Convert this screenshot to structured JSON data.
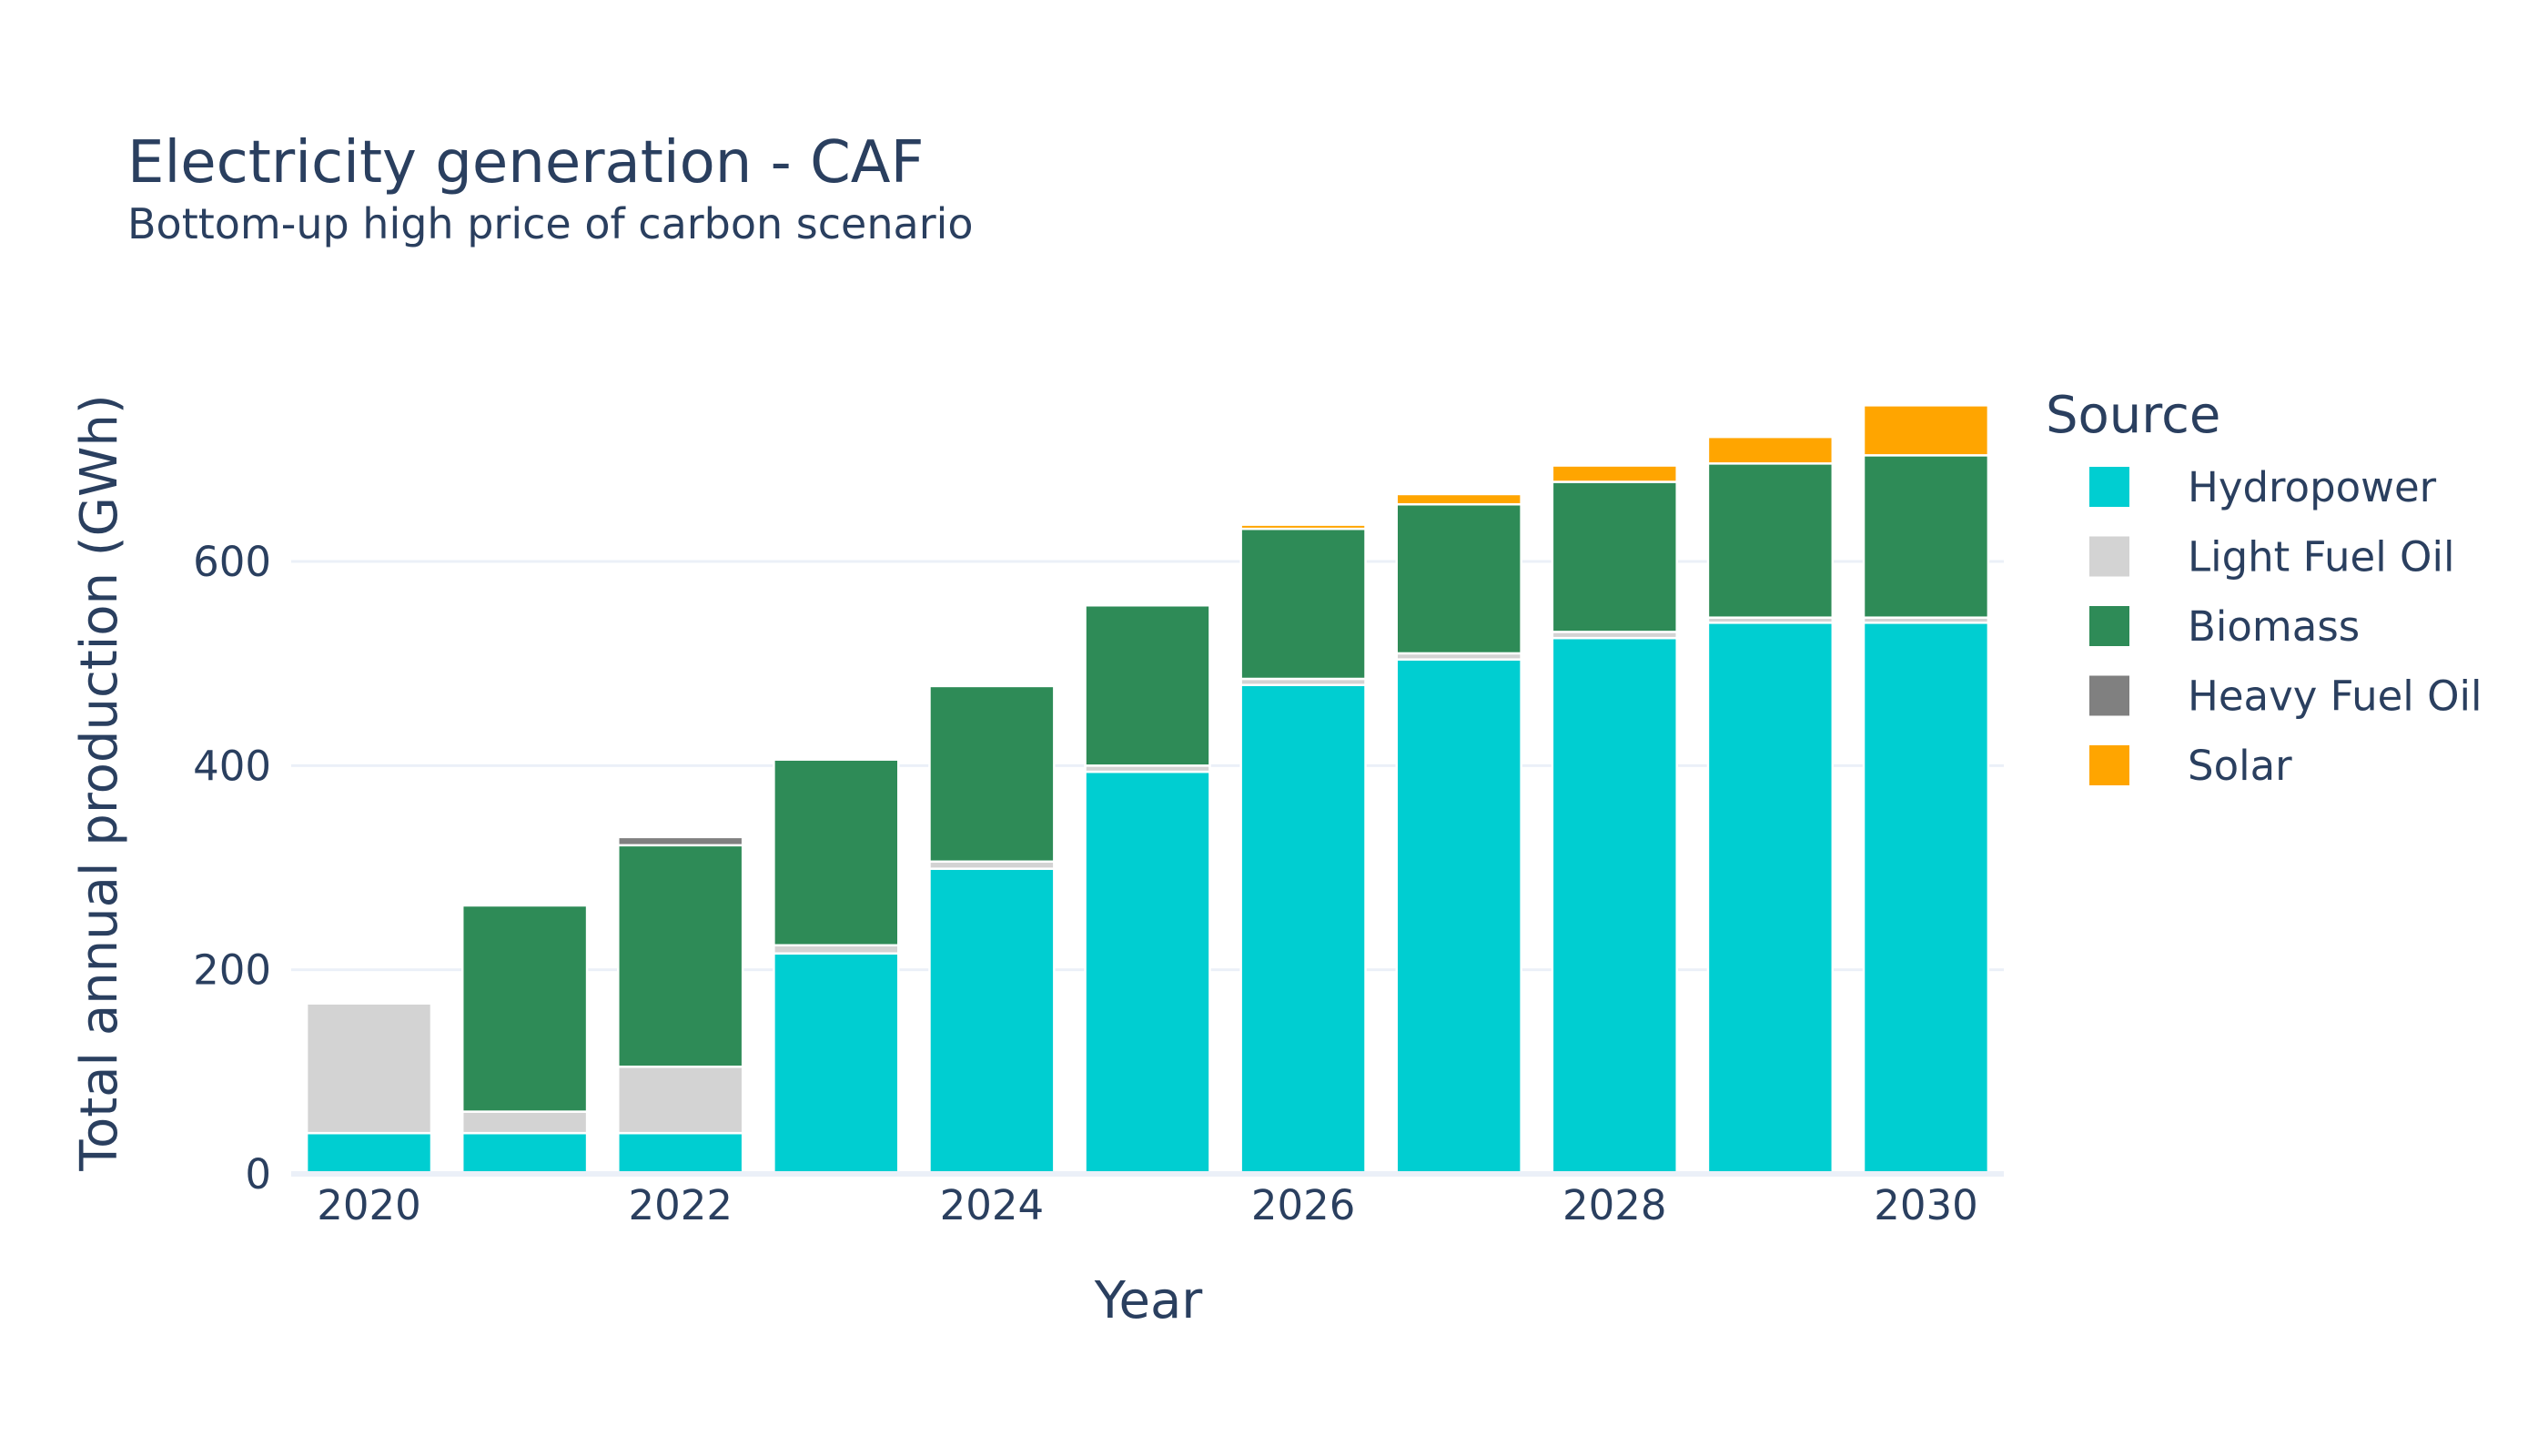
{
  "chart_data": {
    "type": "bar",
    "stacked": true,
    "title": "Electricity generation - CAF",
    "subtitle": "Bottom-up high price of carbon scenario",
    "xlabel": "Year",
    "ylabel": "Total annual production (GWh)",
    "x": [
      2020,
      2021,
      2022,
      2023,
      2024,
      2025,
      2026,
      2027,
      2028,
      2029,
      2030
    ],
    "x_ticks": [
      "2020",
      "2022",
      "2024",
      "2026",
      "2028",
      "2030"
    ],
    "y_ticks": [
      "0",
      "200",
      "400",
      "600"
    ],
    "ylim": [
      0,
      760
    ],
    "grid": true,
    "legend": {
      "title": "Source",
      "position": "right"
    },
    "series": [
      {
        "name": "Hydropower",
        "color": "#00CED1",
        "values": [
          40,
          40,
          40,
          216,
          299,
          394,
          479,
          504,
          525,
          540,
          540
        ]
      },
      {
        "name": "Light Fuel Oil",
        "color": "#D3D3D3",
        "values": [
          127,
          21,
          65,
          8,
          7,
          6,
          6,
          6,
          6,
          5,
          5
        ]
      },
      {
        "name": "Biomass",
        "color": "#2E8B57",
        "values": [
          0,
          202,
          217,
          182,
          172,
          157,
          147,
          146,
          147,
          151,
          159
        ]
      },
      {
        "name": "Heavy Fuel Oil",
        "color": "#808080",
        "values": [
          0,
          0,
          8,
          2,
          2,
          2,
          0,
          0,
          0,
          0,
          0
        ]
      },
      {
        "name": "Solar",
        "color": "#FFA500",
        "values": [
          0,
          0,
          0,
          0,
          0,
          0,
          4,
          10,
          16,
          26,
          49
        ]
      }
    ]
  }
}
